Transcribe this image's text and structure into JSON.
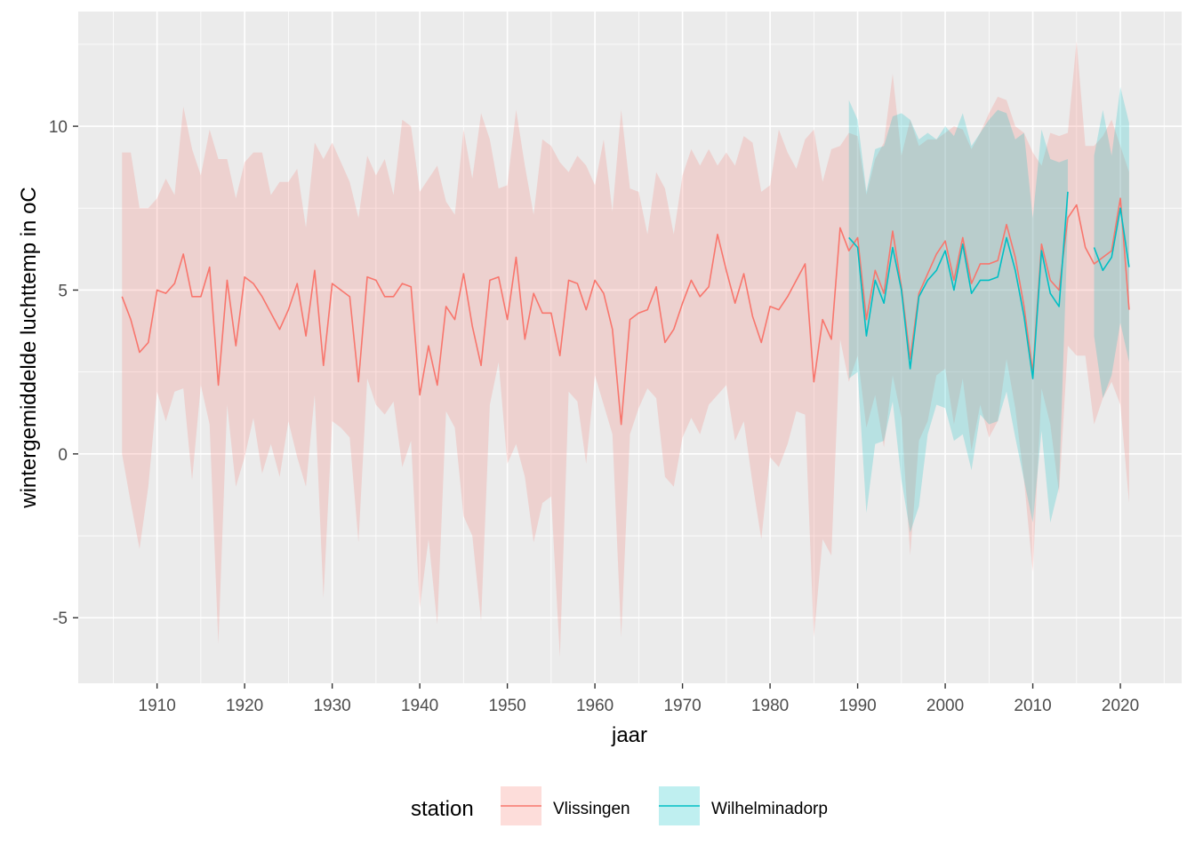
{
  "chart_data": {
    "type": "line",
    "xlabel": "jaar",
    "ylabel": "wintergemiddelde luchttemp in oC",
    "xlim": [
      1901,
      2027
    ],
    "ylim": [
      -7,
      13.5
    ],
    "x_ticks": [
      1910,
      1920,
      1930,
      1940,
      1950,
      1960,
      1970,
      1980,
      1990,
      2000,
      2010,
      2020
    ],
    "y_ticks": [
      -5,
      0,
      5,
      10
    ],
    "y_tick_labels": [
      "-5",
      "0",
      "5",
      "10"
    ],
    "grid": true,
    "legend": {
      "title": "station",
      "position": "bottom"
    },
    "series": [
      {
        "name": "Vlissingen",
        "color": "#F8766D",
        "fill": "#F8766D",
        "years": [
          1906,
          1907,
          1908,
          1909,
          1910,
          1911,
          1912,
          1913,
          1914,
          1915,
          1916,
          1917,
          1918,
          1919,
          1920,
          1921,
          1922,
          1923,
          1924,
          1925,
          1926,
          1927,
          1928,
          1929,
          1930,
          1931,
          1932,
          1933,
          1934,
          1935,
          1936,
          1937,
          1938,
          1939,
          1940,
          1941,
          1942,
          1943,
          1944,
          1945,
          1946,
          1947,
          1948,
          1949,
          1950,
          1951,
          1952,
          1953,
          1954,
          1955,
          1956,
          1957,
          1958,
          1959,
          1960,
          1961,
          1962,
          1963,
          1964,
          1965,
          1966,
          1967,
          1968,
          1969,
          1970,
          1971,
          1972,
          1973,
          1974,
          1975,
          1976,
          1977,
          1978,
          1979,
          1980,
          1981,
          1982,
          1983,
          1984,
          1985,
          1986,
          1987,
          1988,
          1989,
          1990,
          1991,
          1992,
          1993,
          1994,
          1995,
          1996,
          1997,
          1998,
          1999,
          2000,
          2001,
          2002,
          2003,
          2004,
          2005,
          2006,
          2007,
          2008,
          2009,
          2010,
          2011,
          2012,
          2013,
          2014,
          2015,
          2016,
          2017,
          2018,
          2019,
          2020,
          2021
        ],
        "mean": [
          4.8,
          4.1,
          3.1,
          3.4,
          5.0,
          4.9,
          5.2,
          6.1,
          4.8,
          4.8,
          5.7,
          2.1,
          5.3,
          3.3,
          5.4,
          5.2,
          4.8,
          4.3,
          3.8,
          4.4,
          5.2,
          3.6,
          5.6,
          2.7,
          5.2,
          5.0,
          4.8,
          2.2,
          5.4,
          5.3,
          4.8,
          4.8,
          5.2,
          5.1,
          1.8,
          3.3,
          2.1,
          4.5,
          4.1,
          5.5,
          3.9,
          2.7,
          5.3,
          5.4,
          4.1,
          6.0,
          3.5,
          4.9,
          4.3,
          4.3,
          3.0,
          5.3,
          5.2,
          4.4,
          5.3,
          4.9,
          3.8,
          0.9,
          4.1,
          4.3,
          4.4,
          5.1,
          3.4,
          3.8,
          4.6,
          5.3,
          4.8,
          5.1,
          6.7,
          5.6,
          4.6,
          5.5,
          4.2,
          3.4,
          4.5,
          4.4,
          4.8,
          5.3,
          5.8,
          2.2,
          4.1,
          3.5,
          6.9,
          6.2,
          6.6,
          4.1,
          5.6,
          4.9,
          6.8,
          5.1,
          2.9,
          4.9,
          5.5,
          6.1,
          6.5,
          5.3,
          6.6,
          5.2,
          5.8,
          5.8,
          5.9,
          7.0,
          6.0,
          4.5,
          2.5,
          6.4,
          5.3,
          5.0,
          7.2,
          7.6,
          6.3,
          5.8,
          6.0,
          6.2,
          7.8,
          4.4
        ],
        "upper": [
          9.2,
          9.2,
          7.5,
          7.5,
          7.8,
          8.4,
          7.9,
          10.6,
          9.3,
          8.5,
          9.9,
          9.0,
          9.0,
          7.8,
          8.9,
          9.2,
          9.2,
          7.9,
          8.3,
          8.3,
          8.7,
          6.9,
          9.5,
          9.0,
          9.5,
          8.9,
          8.3,
          7.2,
          9.1,
          8.5,
          9.0,
          7.9,
          10.2,
          10.0,
          8.0,
          8.4,
          8.8,
          7.7,
          7.3,
          9.9,
          8.4,
          10.4,
          9.6,
          8.1,
          8.2,
          10.5,
          8.8,
          7.3,
          9.6,
          9.4,
          8.9,
          8.6,
          9.1,
          8.8,
          8.2,
          9.6,
          7.4,
          10.5,
          8.1,
          8.0,
          6.7,
          8.6,
          8.1,
          6.7,
          8.5,
          9.3,
          8.8,
          9.3,
          8.8,
          9.2,
          8.8,
          9.7,
          9.5,
          8.0,
          8.2,
          9.9,
          9.2,
          8.7,
          9.6,
          9.9,
          8.3,
          9.3,
          9.4,
          9.8,
          9.7,
          7.9,
          9.0,
          9.5,
          11.6,
          9.1,
          10.2,
          9.4,
          9.6,
          9.6,
          9.8,
          10.0,
          9.9,
          9.3,
          9.8,
          10.4,
          10.9,
          10.8,
          10.0,
          9.8,
          9.2,
          8.8,
          9.8,
          9.7,
          9.8,
          12.6,
          9.4,
          9.4,
          9.7,
          10.2,
          9.4,
          8.6
        ],
        "lower": [
          0.0,
          -1.5,
          -2.9,
          -1.0,
          1.9,
          1.0,
          1.9,
          2.0,
          -0.8,
          2.1,
          0.9,
          -5.8,
          1.5,
          -1.0,
          -0.1,
          1.1,
          -0.6,
          0.3,
          -0.7,
          1.0,
          -0.1,
          -1.0,
          1.8,
          -4.4,
          1.0,
          0.8,
          0.5,
          -2.7,
          2.3,
          1.5,
          1.2,
          1.6,
          -0.4,
          0.4,
          -4.7,
          -2.6,
          -5.2,
          1.3,
          0.8,
          -1.9,
          -2.5,
          -5.1,
          1.5,
          2.8,
          -0.3,
          0.3,
          -0.7,
          -2.7,
          -1.5,
          -1.3,
          -6.2,
          1.9,
          1.6,
          -0.3,
          2.4,
          1.5,
          0.6,
          -5.6,
          0.6,
          1.4,
          2.0,
          1.7,
          -0.7,
          -1.0,
          0.5,
          1.1,
          0.6,
          1.5,
          1.8,
          2.1,
          0.4,
          1.0,
          -0.9,
          -2.6,
          -0.1,
          -0.4,
          0.3,
          1.3,
          1.2,
          -5.6,
          -2.6,
          -3.1,
          3.5,
          2.2,
          3.0,
          0.8,
          1.8,
          0.2,
          2.4,
          1.1,
          -3.1,
          0.4,
          1.0,
          2.4,
          2.6,
          0.9,
          2.3,
          0.1,
          1.5,
          0.5,
          1.0,
          2.9,
          1.4,
          -0.8,
          -3.6,
          2.0,
          0.9,
          -1.2,
          3.3,
          3.0,
          3.0,
          0.9,
          1.7,
          2.2,
          1.5,
          -1.5
        ]
      },
      {
        "name": "Wilhelminadorp",
        "color": "#00BFC4",
        "fill": "#00BFC4",
        "segments": [
          {
            "years": [
              1989,
              1990,
              1991,
              1992,
              1993,
              1994,
              1995,
              1996,
              1997,
              1998,
              1999,
              2000,
              2001,
              2002,
              2003,
              2004,
              2005,
              2006,
              2007,
              2008,
              2009,
              2010,
              2011,
              2012,
              2013,
              2014
            ],
            "mean": [
              6.6,
              6.3,
              3.6,
              5.3,
              4.6,
              6.3,
              5.0,
              2.6,
              4.8,
              5.3,
              5.6,
              6.2,
              5.0,
              6.4,
              4.9,
              5.3,
              5.3,
              5.4,
              6.6,
              5.6,
              4.2,
              2.3,
              6.2,
              4.9,
              4.5,
              8.0
            ],
            "upper": [
              10.8,
              10.2,
              8.0,
              9.3,
              9.4,
              10.3,
              10.4,
              10.2,
              9.6,
              9.8,
              9.6,
              10.0,
              9.7,
              10.4,
              9.4,
              9.8,
              10.2,
              10.5,
              10.4,
              9.6,
              9.8,
              7.2,
              9.9,
              9.0,
              8.9,
              9.0
            ],
            "lower": [
              2.3,
              2.5,
              -1.8,
              0.3,
              0.4,
              1.6,
              -0.8,
              -2.4,
              -1.6,
              0.6,
              1.5,
              1.4,
              0.4,
              0.6,
              -0.5,
              1.2,
              0.9,
              1.0,
              1.9,
              0.5,
              -0.8,
              -2.1,
              0.7,
              -2.1,
              -1.0,
              7.0
            ]
          },
          {
            "years": [
              2017,
              2018,
              2019,
              2020,
              2021
            ],
            "mean": [
              6.3,
              5.6,
              6.0,
              7.5,
              5.7
            ],
            "upper": [
              9.1,
              10.5,
              9.1,
              11.2,
              10.1
            ],
            "lower": [
              3.6,
              1.7,
              2.4,
              4.0,
              2.8
            ]
          }
        ]
      }
    ]
  }
}
